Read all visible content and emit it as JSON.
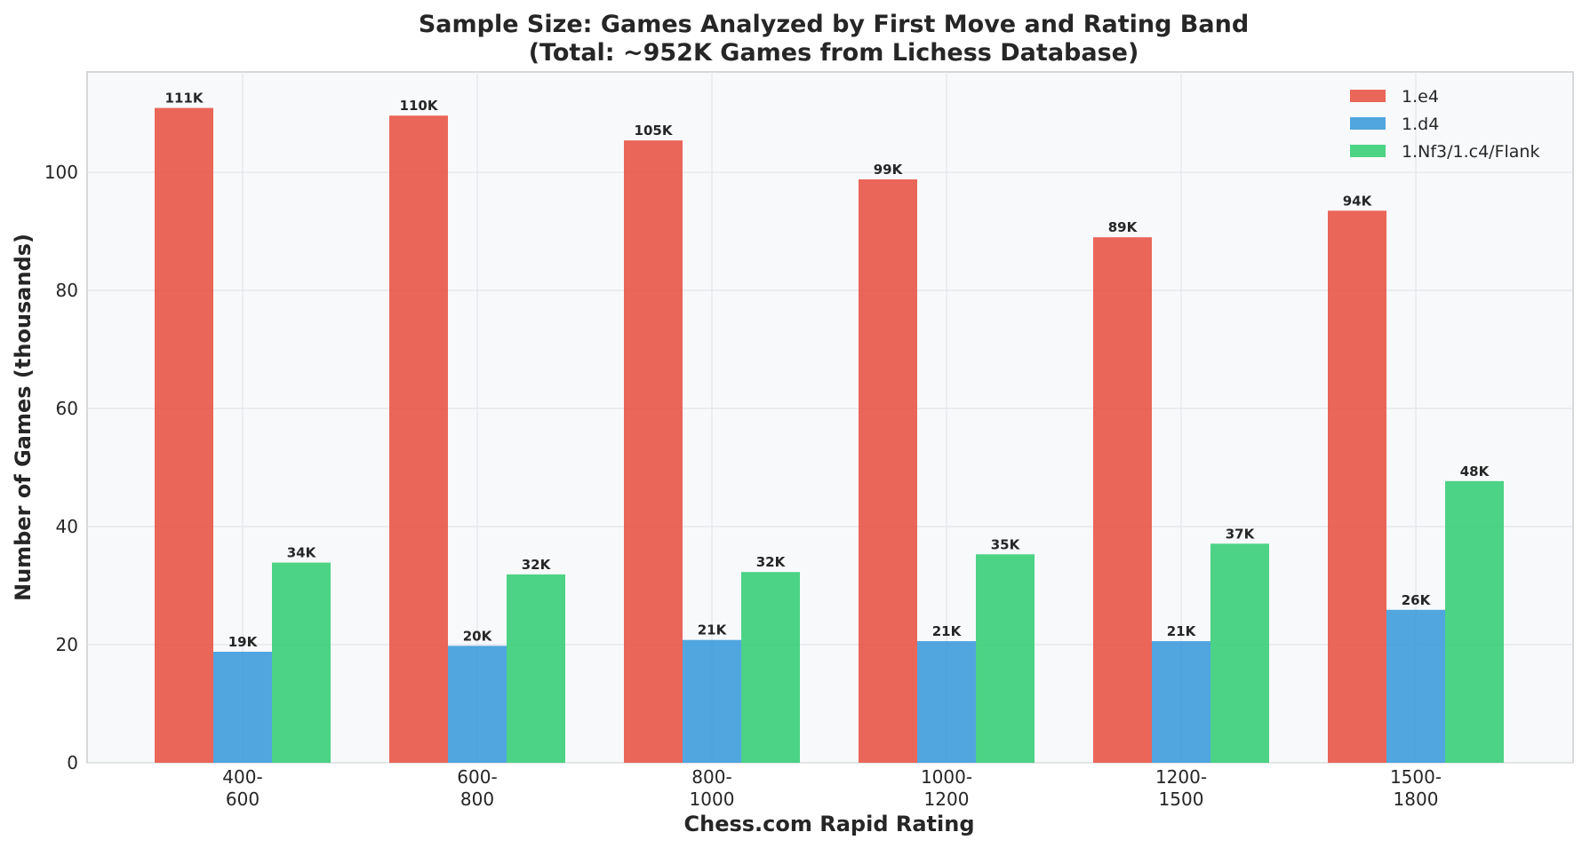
{
  "chart_data": {
    "type": "bar",
    "title_lines": [
      "Sample Size: Games Analyzed by First Move and Rating Band",
      "(Total: ~952K Games from Lichess Database)"
    ],
    "xlabel": "Chess.com Rapid Rating",
    "ylabel": "Number of Games (thousands)",
    "categories": [
      [
        "400-",
        "600"
      ],
      [
        "600-",
        "800"
      ],
      [
        "800-",
        "1000"
      ],
      [
        "1000-",
        "1200"
      ],
      [
        "1200-",
        "1500"
      ],
      [
        "1500-",
        "1800"
      ]
    ],
    "ylim": [
      0,
      117
    ],
    "yticks": [
      0,
      20,
      40,
      60,
      80,
      100
    ],
    "grid": true,
    "legend_position": "top-right",
    "series": [
      {
        "name": "1.e4",
        "color": "#e74c3c",
        "values": [
          110.9,
          109.6,
          105.4,
          98.8,
          89.0,
          93.5
        ],
        "labels": [
          "111K",
          "110K",
          "105K",
          "99K",
          "89K",
          "94K"
        ]
      },
      {
        "name": "1.d4",
        "color": "#3498db",
        "values": [
          18.8,
          19.8,
          20.8,
          20.6,
          20.6,
          25.9
        ],
        "labels": [
          "19K",
          "20K",
          "21K",
          "21K",
          "21K",
          "26K"
        ]
      },
      {
        "name": "1.Nf3/1.c4/Flank",
        "color": "#2ecc71",
        "values": [
          33.9,
          31.9,
          32.3,
          35.3,
          37.1,
          47.7
        ],
        "labels": [
          "34K",
          "32K",
          "32K",
          "35K",
          "37K",
          "48K"
        ]
      }
    ]
  }
}
